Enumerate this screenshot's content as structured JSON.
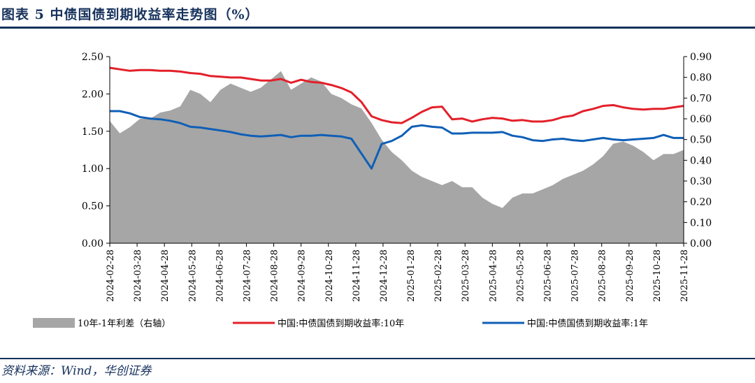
{
  "title": "图表 5   中债国债到期收益率走势图（%）",
  "source": "资料来源：Wind，华创证券",
  "chart_data": {
    "type": "line",
    "left_axis": {
      "ylim": [
        0,
        2.5
      ],
      "ticks": [
        "0.00",
        "0.50",
        "1.00",
        "1.50",
        "2.00",
        "2.50"
      ]
    },
    "right_axis": {
      "ylim": [
        0,
        0.9
      ],
      "ticks": [
        "0.00",
        "0.10",
        "0.20",
        "0.30",
        "0.40",
        "0.50",
        "0.60",
        "0.70",
        "0.80",
        "0.90"
      ]
    },
    "x_ticks": [
      "2024-02-28",
      "2024-03-28",
      "2024-04-28",
      "2024-05-28",
      "2024-06-28",
      "2024-07-28",
      "2024-08-28",
      "2024-09-28",
      "2024-10-28",
      "2024-11-28",
      "2024-12-28",
      "2025-01-28",
      "2025-02-28",
      "2025-03-28",
      "2025-04-28",
      "2025-05-28",
      "2025-06-28",
      "2025-07-28",
      "2025-08-28",
      "2025-09-28",
      "2025-10-28",
      "2025-11-28"
    ],
    "series": [
      {
        "name": "10年-1年利差（右轴）",
        "kind": "area",
        "axis": "right",
        "color": "#a6a6a6",
        "values": [
          0.59,
          0.53,
          0.56,
          0.6,
          0.6,
          0.63,
          0.64,
          0.66,
          0.74,
          0.72,
          0.68,
          0.74,
          0.77,
          0.75,
          0.73,
          0.75,
          0.79,
          0.83,
          0.74,
          0.77,
          0.8,
          0.78,
          0.72,
          0.7,
          0.67,
          0.65,
          0.58,
          0.5,
          0.44,
          0.4,
          0.35,
          0.32,
          0.3,
          0.28,
          0.3,
          0.27,
          0.27,
          0.22,
          0.19,
          0.17,
          0.22,
          0.24,
          0.24,
          0.26,
          0.28,
          0.31,
          0.33,
          0.35,
          0.38,
          0.42,
          0.48,
          0.49,
          0.47,
          0.44,
          0.4,
          0.43,
          0.43,
          0.45
        ]
      },
      {
        "name": "中国:中债国债到期收益率:10年",
        "kind": "line",
        "axis": "left",
        "color": "#e3202a",
        "values": [
          2.35,
          2.33,
          2.31,
          2.32,
          2.32,
          2.31,
          2.31,
          2.3,
          2.28,
          2.27,
          2.24,
          2.23,
          2.22,
          2.22,
          2.2,
          2.18,
          2.18,
          2.2,
          2.15,
          2.19,
          2.16,
          2.15,
          2.12,
          2.08,
          2.02,
          1.89,
          1.7,
          1.65,
          1.62,
          1.61,
          1.68,
          1.76,
          1.82,
          1.83,
          1.66,
          1.67,
          1.63,
          1.66,
          1.68,
          1.67,
          1.64,
          1.65,
          1.63,
          1.63,
          1.65,
          1.69,
          1.71,
          1.77,
          1.8,
          1.84,
          1.85,
          1.82,
          1.8,
          1.79,
          1.8,
          1.8,
          1.82,
          1.84
        ]
      },
      {
        "name": "中国:中债国债到期收益率:1年",
        "kind": "line",
        "axis": "left",
        "color": "#0f5fb6",
        "values": [
          1.77,
          1.77,
          1.74,
          1.69,
          1.67,
          1.66,
          1.64,
          1.61,
          1.56,
          1.55,
          1.53,
          1.51,
          1.49,
          1.46,
          1.44,
          1.43,
          1.44,
          1.45,
          1.42,
          1.44,
          1.44,
          1.45,
          1.44,
          1.43,
          1.4,
          1.2,
          1.0,
          1.33,
          1.37,
          1.44,
          1.56,
          1.58,
          1.56,
          1.55,
          1.47,
          1.47,
          1.48,
          1.48,
          1.48,
          1.49,
          1.44,
          1.42,
          1.38,
          1.37,
          1.39,
          1.4,
          1.38,
          1.37,
          1.39,
          1.41,
          1.39,
          1.38,
          1.39,
          1.4,
          1.41,
          1.45,
          1.41,
          1.41
        ]
      }
    ],
    "legend": [
      {
        "label": "10年-1年利差（右轴）",
        "kind": "area"
      },
      {
        "label": "中国:中债国债到期收益率:10年",
        "kind": "line"
      },
      {
        "label": "中国:中债国债到期收益率:1年",
        "kind": "line"
      }
    ],
    "legend_position": "bottom",
    "grid": false
  }
}
